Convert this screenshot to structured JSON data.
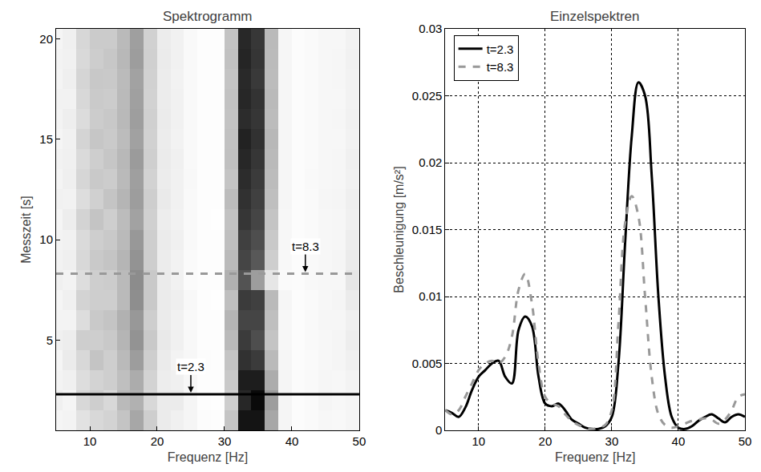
{
  "chart_data": [
    {
      "type": "heatmap",
      "title": "Spektrogramm",
      "x_label": "Frequenz [Hz]",
      "y_label": "Messzeit [s]",
      "xlim": [
        5,
        50
      ],
      "xticks": [
        10,
        20,
        30,
        40,
        50
      ],
      "ylim": [
        0.5,
        20.5
      ],
      "yticks": [
        5,
        10,
        15,
        20
      ],
      "zlim": [
        0,
        0.026
      ],
      "x": [
        5,
        7,
        9,
        11,
        13,
        15,
        17,
        19,
        21,
        23,
        25,
        27,
        29,
        31,
        33,
        35,
        37,
        39,
        41,
        43,
        45,
        47,
        49
      ],
      "y": [
        1,
        2,
        3,
        4,
        5,
        6,
        7,
        8,
        9,
        10,
        11,
        12,
        13,
        14,
        15,
        16,
        17,
        18,
        19,
        20
      ],
      "z": [
        [
          0.001,
          0.0012,
          0.003,
          0.004,
          0.0045,
          0.006,
          0.009,
          0.005,
          0.002,
          0.0015,
          0.001,
          0.0003,
          0.0002,
          0.006,
          0.024,
          0.024,
          0.009,
          0.001,
          0.0003,
          0.0005,
          0.0008,
          0.0007,
          0.001
        ],
        [
          0.0015,
          0.001,
          0.004,
          0.005,
          0.004,
          0.007,
          0.008,
          0.004,
          0.002,
          0.002,
          0.001,
          0.0002,
          0.0001,
          0.005,
          0.022,
          0.025,
          0.01,
          0.001,
          0.0003,
          0.0005,
          0.001,
          0.0008,
          0.001
        ],
        [
          0.0012,
          0.0015,
          0.0035,
          0.0045,
          0.005,
          0.0065,
          0.0085,
          0.0045,
          0.0018,
          0.0015,
          0.0008,
          0.0002,
          0.0002,
          0.0055,
          0.023,
          0.023,
          0.0085,
          0.001,
          0.0004,
          0.0006,
          0.0009,
          0.0008,
          0.0012
        ],
        [
          0.001,
          0.002,
          0.004,
          0.006,
          0.005,
          0.007,
          0.01,
          0.005,
          0.002,
          0.0012,
          0.0008,
          0.0003,
          0.0002,
          0.006,
          0.021,
          0.02,
          0.007,
          0.0009,
          0.0003,
          0.0005,
          0.0008,
          0.001,
          0.0015
        ],
        [
          0.0015,
          0.0018,
          0.005,
          0.005,
          0.0055,
          0.0075,
          0.011,
          0.0055,
          0.0022,
          0.0015,
          0.0007,
          0.0002,
          0.0002,
          0.007,
          0.02,
          0.018,
          0.006,
          0.0008,
          0.0003,
          0.0006,
          0.0008,
          0.001,
          0.0018
        ],
        [
          0.0012,
          0.0012,
          0.0035,
          0.0055,
          0.006,
          0.008,
          0.0105,
          0.005,
          0.002,
          0.0014,
          0.0006,
          0.0002,
          0.0002,
          0.0075,
          0.019,
          0.019,
          0.0065,
          0.0008,
          0.0003,
          0.0006,
          0.0009,
          0.0009,
          0.0015
        ],
        [
          0.001,
          0.0015,
          0.0045,
          0.005,
          0.005,
          0.007,
          0.0115,
          0.0055,
          0.002,
          0.0016,
          0.0007,
          0.0002,
          0.0001,
          0.0065,
          0.02,
          0.0195,
          0.007,
          0.0009,
          0.0003,
          0.0005,
          0.0008,
          0.001,
          0.002
        ],
        [
          0.0015,
          0.0012,
          0.0035,
          0.005,
          0.0052,
          0.007,
          0.0117,
          0.0055,
          0.002,
          0.0014,
          0.0004,
          0.0002,
          0.0002,
          0.008,
          0.0175,
          0.01,
          0.0025,
          0.0005,
          0.0004,
          0.0007,
          0.0008,
          0.0008,
          0.0025
        ],
        [
          0.0013,
          0.0016,
          0.004,
          0.0055,
          0.006,
          0.0075,
          0.011,
          0.005,
          0.0019,
          0.0013,
          0.0005,
          0.0002,
          0.0002,
          0.007,
          0.019,
          0.017,
          0.005,
          0.0007,
          0.0003,
          0.0006,
          0.0008,
          0.001,
          0.002
        ],
        [
          0.0012,
          0.0014,
          0.0038,
          0.005,
          0.0055,
          0.007,
          0.0105,
          0.005,
          0.002,
          0.0015,
          0.0006,
          0.0002,
          0.0002,
          0.0065,
          0.0195,
          0.018,
          0.0055,
          0.0008,
          0.0003,
          0.0005,
          0.0008,
          0.0009,
          0.0018
        ],
        [
          0.001,
          0.0018,
          0.0045,
          0.006,
          0.005,
          0.0068,
          0.0095,
          0.0048,
          0.0018,
          0.0013,
          0.0006,
          0.0002,
          0.0001,
          0.0062,
          0.0205,
          0.019,
          0.006,
          0.0008,
          0.0003,
          0.0005,
          0.0008,
          0.0009,
          0.0015
        ],
        [
          0.0014,
          0.0013,
          0.0035,
          0.0048,
          0.006,
          0.0075,
          0.01,
          0.005,
          0.0021,
          0.0014,
          0.0006,
          0.0002,
          0.0002,
          0.0068,
          0.021,
          0.0195,
          0.0065,
          0.0009,
          0.0003,
          0.0005,
          0.0009,
          0.001,
          0.0016
        ],
        [
          0.0011,
          0.0016,
          0.0042,
          0.0055,
          0.0052,
          0.007,
          0.0098,
          0.0046,
          0.0019,
          0.0014,
          0.0007,
          0.0002,
          0.0002,
          0.006,
          0.0215,
          0.02,
          0.0068,
          0.0009,
          0.0003,
          0.0006,
          0.0008,
          0.0009,
          0.0014
        ],
        [
          0.0013,
          0.0015,
          0.0038,
          0.005,
          0.0058,
          0.0072,
          0.0102,
          0.0049,
          0.002,
          0.0015,
          0.0006,
          0.0002,
          0.0002,
          0.0064,
          0.022,
          0.0205,
          0.007,
          0.0009,
          0.0003,
          0.0005,
          0.0008,
          0.0009,
          0.0015
        ],
        [
          0.001,
          0.0014,
          0.0044,
          0.0058,
          0.0054,
          0.0068,
          0.0096,
          0.0047,
          0.0019,
          0.0013,
          0.0006,
          0.0002,
          0.0002,
          0.0063,
          0.0225,
          0.021,
          0.0072,
          0.0009,
          0.0003,
          0.0005,
          0.0008,
          0.0008,
          0.0013
        ],
        [
          0.0012,
          0.0017,
          0.0036,
          0.0052,
          0.0056,
          0.0071,
          0.0099,
          0.0048,
          0.002,
          0.0014,
          0.0006,
          0.0002,
          0.0002,
          0.0061,
          0.0215,
          0.0205,
          0.0068,
          0.0009,
          0.0003,
          0.0005,
          0.0008,
          0.0009,
          0.0014
        ],
        [
          0.0013,
          0.0013,
          0.004,
          0.0054,
          0.0052,
          0.007,
          0.0097,
          0.0046,
          0.0019,
          0.0014,
          0.0006,
          0.0002,
          0.0002,
          0.0062,
          0.022,
          0.0208,
          0.007,
          0.0009,
          0.0003,
          0.0005,
          0.0008,
          0.0008,
          0.0013
        ],
        [
          0.0011,
          0.0016,
          0.0043,
          0.0056,
          0.0055,
          0.0069,
          0.0095,
          0.0047,
          0.0019,
          0.0013,
          0.0006,
          0.0002,
          0.0002,
          0.006,
          0.0218,
          0.0202,
          0.0068,
          0.0009,
          0.0003,
          0.0005,
          0.0008,
          0.0009,
          0.0013
        ],
        [
          0.0012,
          0.0014,
          0.0039,
          0.0051,
          0.0057,
          0.0072,
          0.01,
          0.0048,
          0.002,
          0.0014,
          0.0006,
          0.0002,
          0.0002,
          0.0063,
          0.0222,
          0.0206,
          0.0069,
          0.0009,
          0.0003,
          0.0005,
          0.0008,
          0.0009,
          0.0014
        ],
        [
          0.001,
          0.0015,
          0.0041,
          0.0053,
          0.0053,
          0.007,
          0.0098,
          0.0047,
          0.0019,
          0.0014,
          0.0006,
          0.0002,
          0.0002,
          0.0061,
          0.0219,
          0.0204,
          0.007,
          0.0009,
          0.0003,
          0.0005,
          0.0008,
          0.0008,
          0.0013
        ]
      ],
      "annotations": [
        {
          "text": "t=2.3",
          "x": 25,
          "y": 2.3,
          "color": "#000000",
          "line_style": "solid"
        },
        {
          "text": "t=8.3",
          "x": 42,
          "y": 8.3,
          "color": "#999999",
          "line_style": "dashed"
        }
      ]
    },
    {
      "type": "line",
      "title": "Einzelspektren",
      "x_label": "Frequenz [Hz]",
      "y_label": "Beschleunigung [m/s²]",
      "xlim": [
        5,
        50
      ],
      "xticks": [
        10,
        20,
        30,
        40,
        50
      ],
      "ylim": [
        0,
        0.03
      ],
      "yticks": [
        0,
        0.005,
        0.01,
        0.015,
        0.02,
        0.025,
        0.03
      ],
      "grid": true,
      "legend": "top-left",
      "x": [
        5,
        6,
        7,
        8,
        9,
        10,
        11,
        12,
        13,
        14,
        15,
        16,
        17,
        18,
        19,
        20,
        21,
        22,
        23,
        24,
        25,
        26,
        27,
        28,
        29,
        30,
        31,
        32,
        33,
        34,
        35,
        36,
        37,
        38,
        39,
        40,
        41,
        42,
        43,
        44,
        45,
        46,
        47,
        48,
        49,
        50
      ],
      "series": [
        {
          "name": "t=2.3",
          "color": "#000000",
          "line_style": "solid",
          "values": [
            0.0015,
            0.0013,
            0.001,
            0.0017,
            0.003,
            0.004,
            0.0045,
            0.005,
            0.0052,
            0.004,
            0.0035,
            0.0075,
            0.0085,
            0.0078,
            0.004,
            0.002,
            0.0018,
            0.002,
            0.0015,
            0.0008,
            0.0005,
            0.0002,
            0.0001,
            0.0001,
            0.0003,
            0.001,
            0.005,
            0.014,
            0.022,
            0.026,
            0.025,
            0.019,
            0.01,
            0.004,
            0.001,
            0.0002,
            0.0001,
            0.0003,
            0.0007,
            0.001,
            0.0012,
            0.0009,
            0.0006,
            0.001,
            0.0012,
            0.001
          ]
        },
        {
          "name": "t=8.3",
          "color": "#999999",
          "line_style": "dashed",
          "values": [
            0.0015,
            0.0012,
            0.0015,
            0.0025,
            0.0035,
            0.0045,
            0.005,
            0.0052,
            0.005,
            0.0055,
            0.007,
            0.0105,
            0.0117,
            0.0095,
            0.005,
            0.0025,
            0.002,
            0.0018,
            0.0012,
            0.0007,
            0.0004,
            0.0002,
            0.0001,
            0.0002,
            0.0004,
            0.0015,
            0.008,
            0.0155,
            0.0175,
            0.016,
            0.01,
            0.004,
            0.0012,
            0.0004,
            0.0002,
            0.0003,
            0.0005,
            0.0007,
            0.0008,
            0.0009,
            0.0008,
            0.0005,
            0.0008,
            0.0015,
            0.0025,
            0.0027
          ]
        }
      ]
    }
  ]
}
